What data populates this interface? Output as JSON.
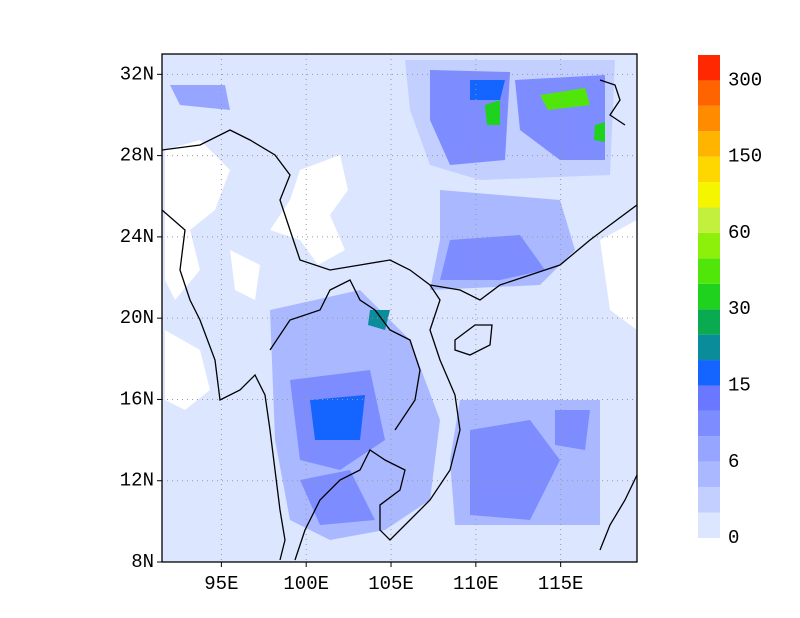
{
  "map": {
    "lon_range": [
      91.5,
      119.5
    ],
    "lat_range": [
      8,
      33
    ],
    "lat_ticks": [
      {
        "value": 8,
        "label": "8N"
      },
      {
        "value": 12,
        "label": "12N"
      },
      {
        "value": 16,
        "label": "16N"
      },
      {
        "value": 20,
        "label": "20N"
      },
      {
        "value": 24,
        "label": "24N"
      },
      {
        "value": 28,
        "label": "28N"
      },
      {
        "value": 32,
        "label": "32N"
      }
    ],
    "lon_ticks": [
      {
        "value": 95,
        "label": "95E"
      },
      {
        "value": 100,
        "label": "100E"
      },
      {
        "value": 105,
        "label": "105E"
      },
      {
        "value": 110,
        "label": "110E"
      },
      {
        "value": 115,
        "label": "115E"
      }
    ],
    "colorbar": {
      "colors": [
        "#dce6ff",
        "#c3cfff",
        "#aab9ff",
        "#96a5ff",
        "#7d8cff",
        "#6a78ff",
        "#1464ff",
        "#0a8c9b",
        "#0aaa50",
        "#1ed21e",
        "#50e60a",
        "#8cf00a",
        "#c3f03c",
        "#f5f500",
        "#ffd700",
        "#ffb400",
        "#ff8c00",
        "#ff6400",
        "#ff2800"
      ],
      "labels": [
        0,
        6,
        15,
        30,
        60,
        150,
        300
      ]
    }
  }
}
